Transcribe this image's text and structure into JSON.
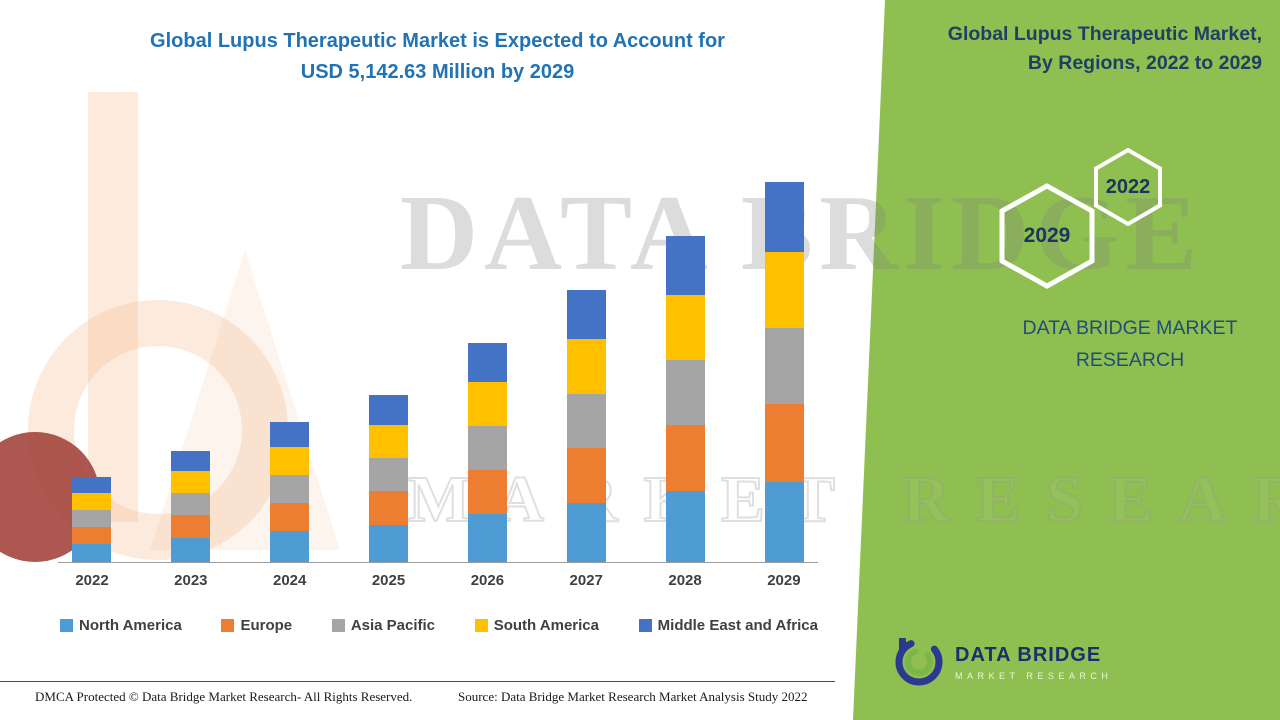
{
  "header": {
    "title_line1": "Global Lupus Therapeutic Market is Expected to Account for",
    "title_line2": "USD 5,142.63 Million by 2029"
  },
  "side_panel": {
    "heading_line1": "Global Lupus Therapeutic Market,",
    "heading_line2": "By Regions, 2022 to 2029",
    "badge_back": "2022",
    "badge_front": "2029",
    "brand_line1": "DATA BRIDGE MARKET",
    "brand_line2": "RESEARCH",
    "panel_color": "#8FBF50"
  },
  "logo": {
    "title": "DATA BRIDGE",
    "subtitle": "MARKET RESEARCH"
  },
  "watermark": {
    "line1": "DATA BRIDGE",
    "line2": "MARKET RESEARCH"
  },
  "footer": {
    "dmca": "DMCA Protected © Data Bridge Market Research- All Rights Reserved.",
    "source": "Source: Data Bridge Market Research Market Analysis Study 2022"
  },
  "chart_data": {
    "type": "bar",
    "stacked": true,
    "title": "Global Lupus Therapeutic Market, By Regions, 2022 to 2029",
    "unit": "USD Million",
    "categories": [
      "2022",
      "2023",
      "2024",
      "2025",
      "2026",
      "2027",
      "2028",
      "2029"
    ],
    "series": [
      {
        "name": "North America",
        "color": "#4F9BD4",
        "values": [
          250,
          330,
          420,
          495,
          645,
          800,
          960,
          1090
        ]
      },
      {
        "name": "Europe",
        "color": "#ED7D31",
        "values": [
          230,
          305,
          385,
          460,
          600,
          745,
          895,
          1045
        ]
      },
      {
        "name": "Asia Pacific",
        "color": "#A5A5A5",
        "values": [
          220,
          295,
          375,
          450,
          590,
          735,
          880,
          1030
        ]
      },
      {
        "name": "South America",
        "color": "#FFC000",
        "values": [
          235,
          300,
          380,
          455,
          595,
          740,
          885,
          1035
        ]
      },
      {
        "name": "Middle East and Africa",
        "color": "#4472C4",
        "values": [
          215,
          275,
          340,
          400,
          535,
          660,
          790,
          942.63
        ]
      }
    ],
    "totals": [
      1150,
      1505,
      1900,
      2260,
      2965,
      3680,
      4410,
      5142.63
    ],
    "ylim": [
      0,
      5500
    ],
    "grid": false,
    "legend_position": "bottom"
  }
}
